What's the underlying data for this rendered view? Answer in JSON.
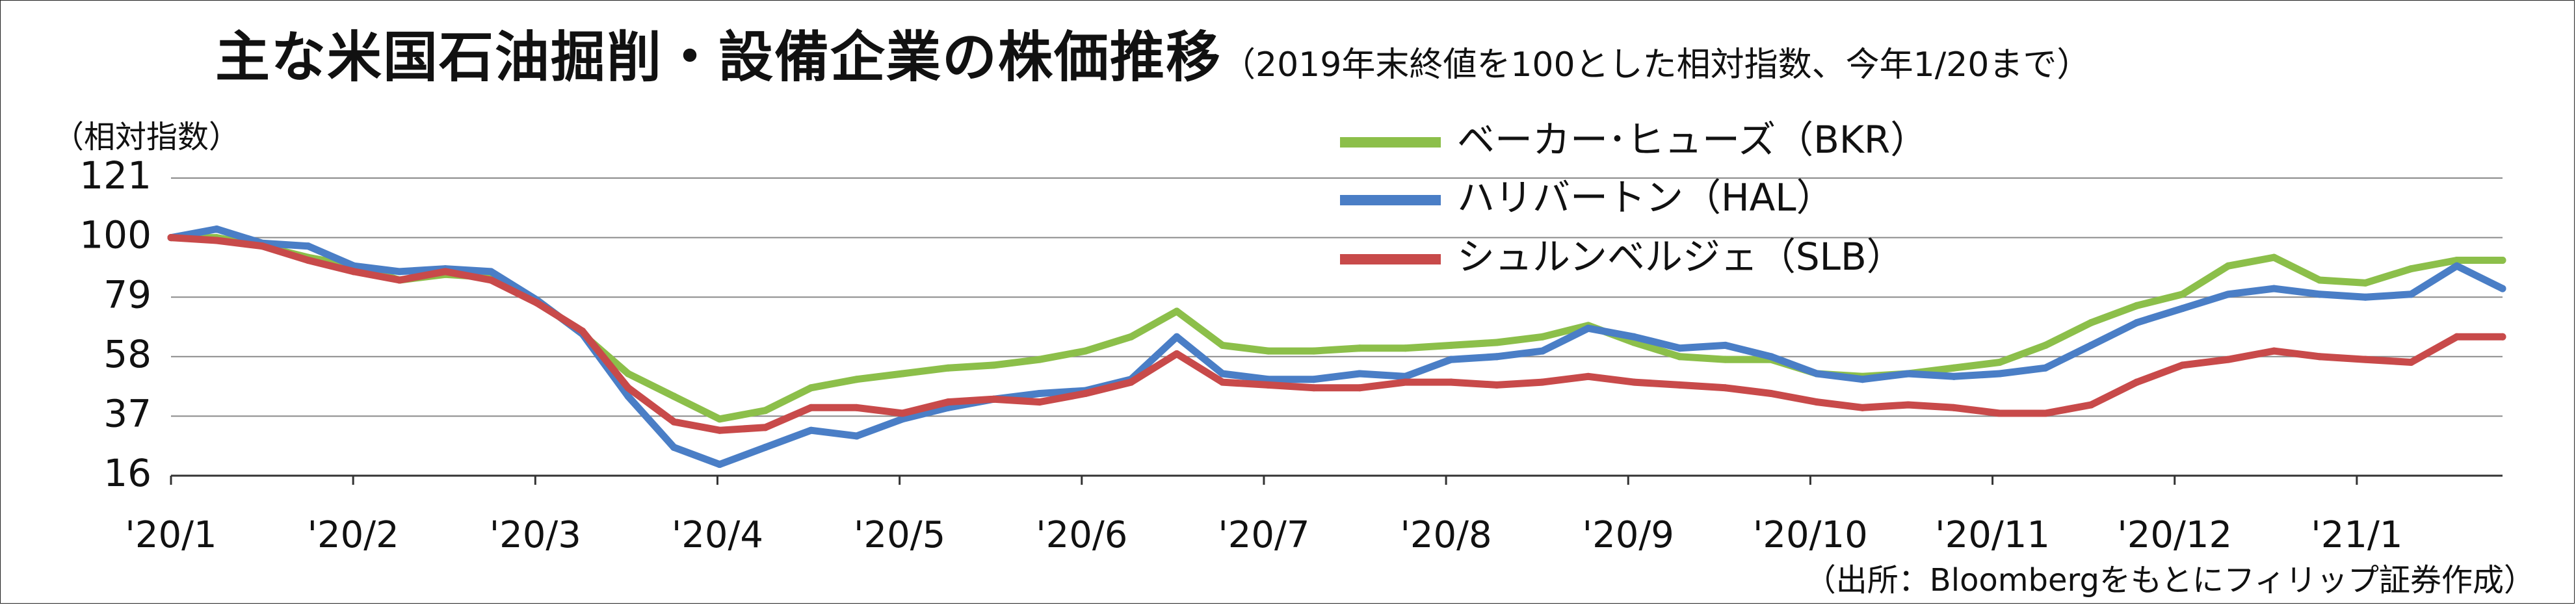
{
  "title": {
    "main": "主な米国石油掘削・設備企業の株価推移",
    "sub": "（2019年末終値を100とした相対指数、今年1/20まで）"
  },
  "unit_label": "（相対指数）",
  "source_note": "（出所：Bloombergをもとにフィリップ証券作成）",
  "chart_data": {
    "type": "line",
    "ylabel": "（相対指数）",
    "ylim": [
      16,
      121
    ],
    "y_ticks": [
      "121",
      "100",
      "79",
      "58",
      "37",
      "16"
    ],
    "x_tick_labels": [
      "'20/1",
      "'20/2",
      "'20/3",
      "'20/4",
      "'20/5",
      "'20/6",
      "'20/7",
      "'20/8",
      "'20/9",
      "'20/10",
      "'20/11",
      "'20/12",
      "'21/1"
    ],
    "grid": true,
    "legend_position": "top-right",
    "x": [
      "'20/1",
      "'20/1",
      "'20/1",
      "'20/1",
      "'20/2",
      "'20/2",
      "'20/2",
      "'20/2",
      "'20/3",
      "'20/3",
      "'20/3",
      "'20/3",
      "'20/4",
      "'20/4",
      "'20/4",
      "'20/4",
      "'20/5",
      "'20/5",
      "'20/5",
      "'20/5",
      "'20/6",
      "'20/6",
      "'20/6",
      "'20/6",
      "'20/7",
      "'20/7",
      "'20/7",
      "'20/7",
      "'20/8",
      "'20/8",
      "'20/8",
      "'20/8",
      "'20/9",
      "'20/9",
      "'20/9",
      "'20/9",
      "'20/10",
      "'20/10",
      "'20/10",
      "'20/10",
      "'20/11",
      "'20/11",
      "'20/11",
      "'20/11",
      "'20/12",
      "'20/12",
      "'20/12",
      "'20/12",
      "'21/1",
      "'21/1",
      "'21/1",
      "'21/1"
    ],
    "series": [
      {
        "name": "ベーカー･ヒューズ（BKR）",
        "color": "#8CBF4A",
        "values": [
          100,
          100,
          97,
          93,
          90,
          85,
          87,
          86,
          78,
          66,
          52,
          44,
          36,
          39,
          47,
          50,
          52,
          54,
          55,
          57,
          60,
          65,
          74,
          62,
          60,
          60,
          61,
          61,
          62,
          63,
          65,
          69,
          63,
          58,
          57,
          57,
          52,
          51,
          52,
          54,
          56,
          62,
          70,
          76,
          80,
          90,
          93,
          85,
          84,
          89,
          92,
          92
        ]
      },
      {
        "name": "ハリバートン（HAL）",
        "color": "#4A7EC6",
        "values": [
          100,
          103,
          98,
          97,
          90,
          88,
          89,
          88,
          78,
          66,
          44,
          26,
          20,
          26,
          32,
          30,
          36,
          40,
          43,
          45,
          46,
          50,
          65,
          52,
          50,
          50,
          52,
          51,
          57,
          58,
          60,
          68,
          65,
          61,
          62,
          58,
          52,
          50,
          52,
          51,
          52,
          54,
          62,
          70,
          75,
          80,
          82,
          80,
          79,
          80,
          90,
          82
        ]
      },
      {
        "name": "シュルンベルジェ（SLB）",
        "color": "#C84A4A",
        "values": [
          100,
          99,
          97,
          92,
          88,
          85,
          88,
          85,
          77,
          67,
          47,
          35,
          32,
          33,
          40,
          40,
          38,
          42,
          43,
          42,
          45,
          49,
          59,
          49,
          48,
          47,
          47,
          49,
          49,
          48,
          49,
          51,
          49,
          48,
          47,
          45,
          42,
          40,
          41,
          40,
          38,
          38,
          41,
          49,
          55,
          57,
          60,
          58,
          57,
          56,
          65,
          65
        ]
      }
    ]
  }
}
